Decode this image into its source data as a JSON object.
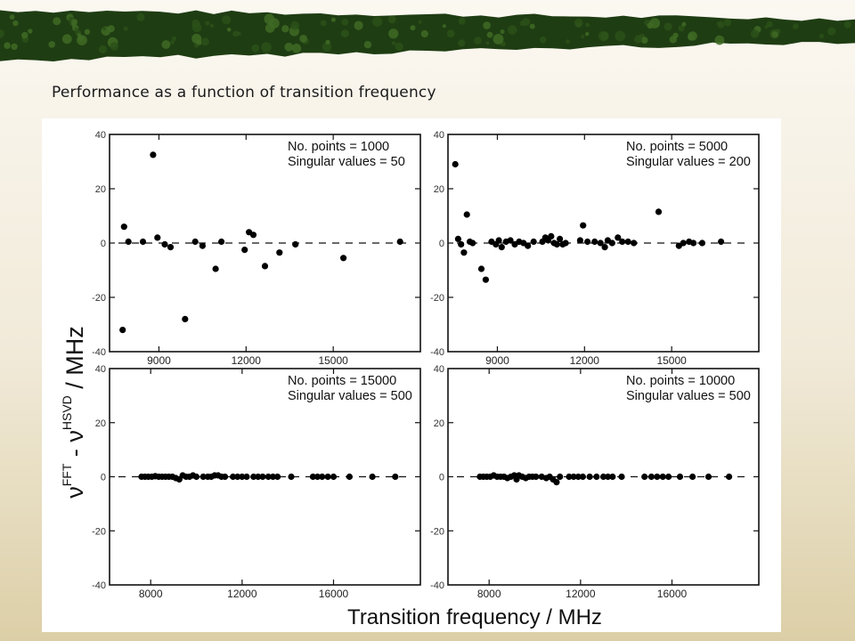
{
  "slide": {
    "title": "Performance as a function of transition frequency"
  },
  "colors": {
    "banner_dark": "#1f3d13",
    "banner_mid": "#3f6a24",
    "marker": "#000000",
    "frame": "#111111"
  },
  "chart_data": [
    {
      "type": "scatter",
      "panel": "top-left",
      "annotations": [
        "No. points = 1000",
        "Singular values = 50"
      ],
      "xlim": [
        7300,
        18000
      ],
      "ylim": [
        -40,
        40
      ],
      "xticks": [
        9000,
        12000,
        15000
      ],
      "yticks": [
        -40,
        -20,
        0,
        20,
        40
      ],
      "zero_line": "dashed",
      "points": [
        {
          "x": 7750,
          "y": -32
        },
        {
          "x": 7800,
          "y": 6
        },
        {
          "x": 7950,
          "y": 0.5
        },
        {
          "x": 8450,
          "y": 0.5
        },
        {
          "x": 8800,
          "y": 32.5
        },
        {
          "x": 8950,
          "y": 2
        },
        {
          "x": 9200,
          "y": -0.5
        },
        {
          "x": 9400,
          "y": -1.5
        },
        {
          "x": 9900,
          "y": -28
        },
        {
          "x": 10250,
          "y": 0.5
        },
        {
          "x": 10500,
          "y": -1
        },
        {
          "x": 10950,
          "y": -9.5
        },
        {
          "x": 11150,
          "y": 0.5
        },
        {
          "x": 11950,
          "y": -2.5
        },
        {
          "x": 12100,
          "y": 4
        },
        {
          "x": 12250,
          "y": 3
        },
        {
          "x": 12650,
          "y": -8.5
        },
        {
          "x": 13150,
          "y": -3.5
        },
        {
          "x": 13700,
          "y": -0.5
        },
        {
          "x": 15350,
          "y": -5.5
        },
        {
          "x": 17300,
          "y": 0.5
        }
      ]
    },
    {
      "type": "scatter",
      "panel": "top-right",
      "annotations": [
        "No. points = 5000",
        "Singular values = 200"
      ],
      "xlim": [
        7300,
        18000
      ],
      "ylim": [
        -40,
        40
      ],
      "xticks": [
        9000,
        12000,
        15000
      ],
      "yticks": [
        -40,
        -20,
        0,
        20,
        40
      ],
      "zero_line": "dashed",
      "points": [
        {
          "x": 7550,
          "y": 29
        },
        {
          "x": 7650,
          "y": 1.5
        },
        {
          "x": 7750,
          "y": -0.5
        },
        {
          "x": 7850,
          "y": -3.5
        },
        {
          "x": 7950,
          "y": 10.5
        },
        {
          "x": 8050,
          "y": 0.5
        },
        {
          "x": 8150,
          "y": 0
        },
        {
          "x": 8450,
          "y": -9.5
        },
        {
          "x": 8600,
          "y": -13.5
        },
        {
          "x": 8800,
          "y": 0.5
        },
        {
          "x": 8950,
          "y": -0.5
        },
        {
          "x": 9050,
          "y": 1
        },
        {
          "x": 9150,
          "y": -1.5
        },
        {
          "x": 9300,
          "y": 0.5
        },
        {
          "x": 9450,
          "y": 1
        },
        {
          "x": 9600,
          "y": -0.5
        },
        {
          "x": 9750,
          "y": 0.5
        },
        {
          "x": 9900,
          "y": 0
        },
        {
          "x": 10050,
          "y": -1
        },
        {
          "x": 10250,
          "y": 0.5
        },
        {
          "x": 10550,
          "y": 0.5
        },
        {
          "x": 10650,
          "y": 2
        },
        {
          "x": 10750,
          "y": 1
        },
        {
          "x": 10850,
          "y": 2.5
        },
        {
          "x": 10950,
          "y": 0
        },
        {
          "x": 11050,
          "y": -0.5
        },
        {
          "x": 11150,
          "y": 1.5
        },
        {
          "x": 11250,
          "y": -0.5
        },
        {
          "x": 11350,
          "y": 0
        },
        {
          "x": 11850,
          "y": 1
        },
        {
          "x": 11950,
          "y": 6.5
        },
        {
          "x": 12100,
          "y": 0.5
        },
        {
          "x": 12350,
          "y": 0.5
        },
        {
          "x": 12550,
          "y": 0
        },
        {
          "x": 12700,
          "y": -1.5
        },
        {
          "x": 12800,
          "y": 1
        },
        {
          "x": 12950,
          "y": 0
        },
        {
          "x": 13150,
          "y": 2
        },
        {
          "x": 13300,
          "y": 0.5
        },
        {
          "x": 13500,
          "y": 0.5
        },
        {
          "x": 13700,
          "y": 0
        },
        {
          "x": 14550,
          "y": 11.5
        },
        {
          "x": 15250,
          "y": -1
        },
        {
          "x": 15400,
          "y": 0
        },
        {
          "x": 15600,
          "y": 0.5
        },
        {
          "x": 15750,
          "y": 0
        },
        {
          "x": 16050,
          "y": 0
        },
        {
          "x": 16700,
          "y": 0.5
        }
      ]
    },
    {
      "type": "scatter",
      "panel": "bottom-left",
      "annotations": [
        "No. points = 15000",
        "Singular values = 500"
      ],
      "xlim": [
        6200,
        19800
      ],
      "ylim": [
        -40,
        40
      ],
      "xticks": [
        8000,
        12000,
        16000
      ],
      "yticks": [
        -40,
        -20,
        0,
        20,
        40
      ],
      "zero_line": "dashed",
      "points": [
        {
          "x": 7600,
          "y": 0
        },
        {
          "x": 7750,
          "y": 0
        },
        {
          "x": 7900,
          "y": 0
        },
        {
          "x": 8050,
          "y": 0
        },
        {
          "x": 8200,
          "y": 0.2
        },
        {
          "x": 8350,
          "y": 0
        },
        {
          "x": 8500,
          "y": 0
        },
        {
          "x": 8650,
          "y": 0
        },
        {
          "x": 8800,
          "y": 0
        },
        {
          "x": 8950,
          "y": 0
        },
        {
          "x": 9100,
          "y": -0.5
        },
        {
          "x": 9250,
          "y": -1
        },
        {
          "x": 9400,
          "y": 0.5
        },
        {
          "x": 9550,
          "y": 0
        },
        {
          "x": 9700,
          "y": 0
        },
        {
          "x": 9850,
          "y": 0.5
        },
        {
          "x": 10000,
          "y": 0
        },
        {
          "x": 10300,
          "y": 0
        },
        {
          "x": 10500,
          "y": 0
        },
        {
          "x": 10650,
          "y": 0
        },
        {
          "x": 10800,
          "y": 0.5
        },
        {
          "x": 10950,
          "y": 0.5
        },
        {
          "x": 11100,
          "y": 0
        },
        {
          "x": 11250,
          "y": 0
        },
        {
          "x": 11600,
          "y": 0
        },
        {
          "x": 11800,
          "y": 0
        },
        {
          "x": 12000,
          "y": 0
        },
        {
          "x": 12200,
          "y": 0
        },
        {
          "x": 12500,
          "y": 0
        },
        {
          "x": 12700,
          "y": 0
        },
        {
          "x": 12900,
          "y": 0
        },
        {
          "x": 13150,
          "y": 0
        },
        {
          "x": 13350,
          "y": 0
        },
        {
          "x": 13550,
          "y": 0
        },
        {
          "x": 14150,
          "y": 0
        },
        {
          "x": 15100,
          "y": 0
        },
        {
          "x": 15300,
          "y": 0
        },
        {
          "x": 15500,
          "y": 0
        },
        {
          "x": 15750,
          "y": 0
        },
        {
          "x": 16000,
          "y": 0
        },
        {
          "x": 16700,
          "y": 0
        },
        {
          "x": 17700,
          "y": 0
        },
        {
          "x": 18700,
          "y": 0
        }
      ]
    },
    {
      "type": "scatter",
      "panel": "bottom-right",
      "annotations": [
        "No. points = 10000",
        "Singular values = 500"
      ],
      "xlim": [
        6200,
        19800
      ],
      "ylim": [
        -40,
        40
      ],
      "xticks": [
        8000,
        12000,
        16000
      ],
      "yticks": [
        -40,
        -20,
        0,
        20,
        40
      ],
      "zero_line": "dashed",
      "points": [
        {
          "x": 7600,
          "y": 0
        },
        {
          "x": 7750,
          "y": 0
        },
        {
          "x": 7900,
          "y": 0
        },
        {
          "x": 8050,
          "y": 0
        },
        {
          "x": 8200,
          "y": 0.5
        },
        {
          "x": 8350,
          "y": 0
        },
        {
          "x": 8500,
          "y": 0
        },
        {
          "x": 8650,
          "y": 0
        },
        {
          "x": 8800,
          "y": -0.5
        },
        {
          "x": 8950,
          "y": 0
        },
        {
          "x": 9100,
          "y": 0.5
        },
        {
          "x": 9200,
          "y": -1
        },
        {
          "x": 9300,
          "y": 0.5
        },
        {
          "x": 9450,
          "y": 0
        },
        {
          "x": 9600,
          "y": -0.5
        },
        {
          "x": 9750,
          "y": 0
        },
        {
          "x": 9900,
          "y": 0
        },
        {
          "x": 10050,
          "y": 0
        },
        {
          "x": 10300,
          "y": 0
        },
        {
          "x": 10500,
          "y": -0.5
        },
        {
          "x": 10650,
          "y": 0
        },
        {
          "x": 10800,
          "y": -1
        },
        {
          "x": 10950,
          "y": -2
        },
        {
          "x": 11100,
          "y": 0
        },
        {
          "x": 11500,
          "y": 0
        },
        {
          "x": 11700,
          "y": 0
        },
        {
          "x": 11900,
          "y": 0
        },
        {
          "x": 12100,
          "y": 0
        },
        {
          "x": 12400,
          "y": 0
        },
        {
          "x": 12700,
          "y": 0
        },
        {
          "x": 13000,
          "y": 0
        },
        {
          "x": 13200,
          "y": 0
        },
        {
          "x": 13400,
          "y": 0
        },
        {
          "x": 13800,
          "y": 0
        },
        {
          "x": 14800,
          "y": 0
        },
        {
          "x": 15100,
          "y": 0
        },
        {
          "x": 15350,
          "y": 0
        },
        {
          "x": 15600,
          "y": 0
        },
        {
          "x": 15850,
          "y": 0
        },
        {
          "x": 16350,
          "y": 0
        },
        {
          "x": 16900,
          "y": 0
        },
        {
          "x": 17600,
          "y": 0
        },
        {
          "x": 18500,
          "y": 0
        }
      ]
    }
  ],
  "figure": {
    "ylabel_parts": {
      "nu": "ν",
      "sup_fft": "FFT",
      "minus": " - ",
      "sup_hsvd": "HSVD",
      "unit": " / MHz"
    },
    "xlabel": "Transition frequency / MHz"
  }
}
